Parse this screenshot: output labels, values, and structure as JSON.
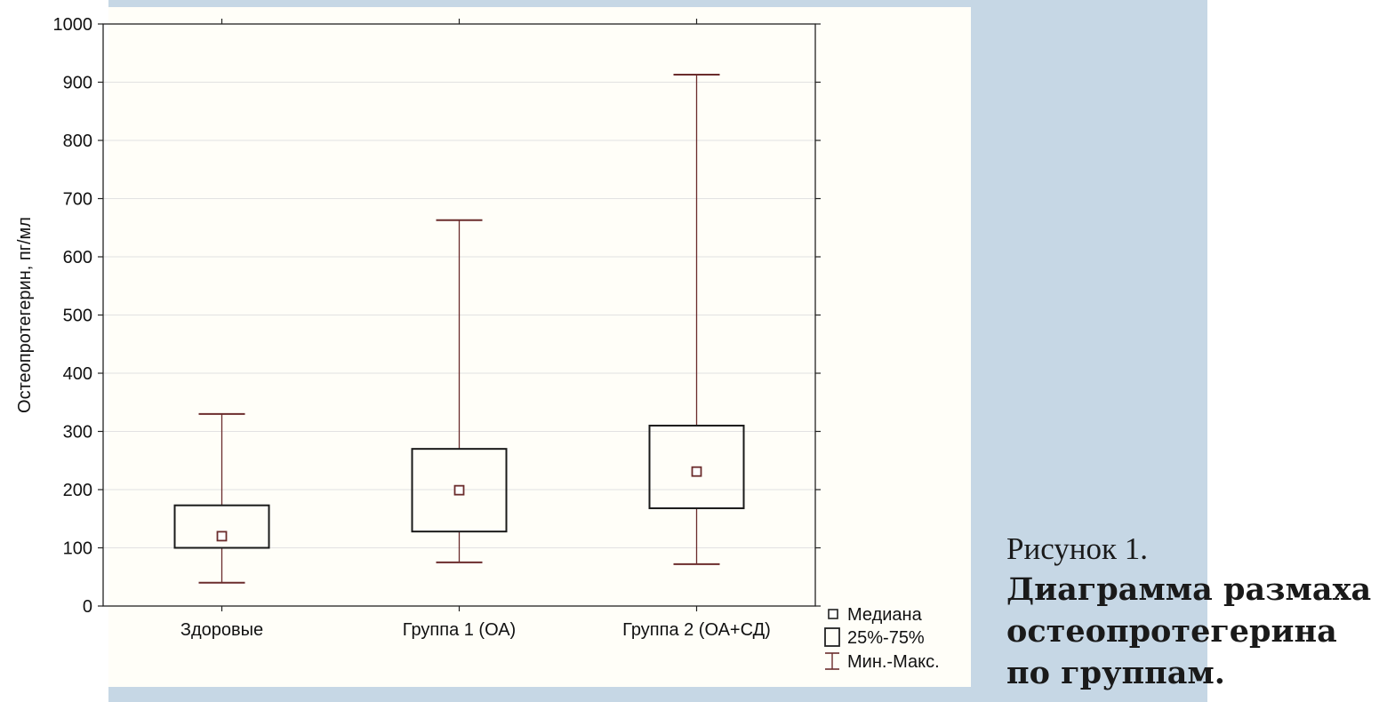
{
  "figure": {
    "label": "Рисунок 1.",
    "title_lines": [
      "Диаграмма размаха",
      "остеопротегерина",
      "по группам."
    ]
  },
  "colors": {
    "page_background": "#ffffff",
    "frame": "#c6d7e5",
    "plot_panel": "#fffef8",
    "box_edge": "#1a1a1a",
    "whisker": "#6b2c2c"
  },
  "chart_data": {
    "type": "box",
    "ylabel": "Остеопротегерин, пг/мл",
    "xlabel": "",
    "ylim": [
      0,
      1000
    ],
    "yticks": [
      0,
      100,
      200,
      300,
      400,
      500,
      600,
      700,
      800,
      900,
      1000
    ],
    "grid": true,
    "categories": [
      "Здоровые",
      "Группа 1 (ОА)",
      "Группа 2 (ОА+СД)"
    ],
    "boxes": [
      {
        "category": "Здоровые",
        "min": 40,
        "q1": 100,
        "median": 120,
        "q3": 173,
        "max": 330
      },
      {
        "category": "Группа 1 (ОА)",
        "min": 75,
        "q1": 128,
        "median": 199,
        "q3": 270,
        "max": 663
      },
      {
        "category": "Группа 2 (ОА+СД)",
        "min": 72,
        "q1": 168,
        "median": 231,
        "q3": 310,
        "max": 913
      }
    ],
    "legend_position": "bottom-right",
    "legend": [
      {
        "symbol": "median-square",
        "label": "Медиана"
      },
      {
        "symbol": "box",
        "label": "25%-75%"
      },
      {
        "symbol": "whisker",
        "label": "Мин.-Макс."
      }
    ]
  }
}
